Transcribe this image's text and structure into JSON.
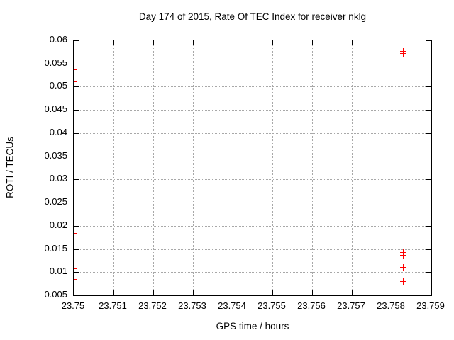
{
  "colors": {
    "background": "#ffffff",
    "border": "#000000",
    "grid": "#a8a8a8",
    "text": "#000000",
    "marker": "#ff0000"
  },
  "chart_data": {
    "type": "scatter",
    "title": "Day 174 of 2015, Rate Of TEC Index for receiver nklg",
    "xlabel": "GPS time / hours",
    "ylabel": "ROTI / TECUs",
    "xlim": [
      23.75,
      23.759
    ],
    "ylim": [
      0.005,
      0.06
    ],
    "grid": true,
    "legend": "none",
    "marker": "plus",
    "marker_color": "#ff0000",
    "x_ticks": [
      {
        "v": 23.75,
        "label": "23.75"
      },
      {
        "v": 23.751,
        "label": "23.751"
      },
      {
        "v": 23.752,
        "label": "23.752"
      },
      {
        "v": 23.753,
        "label": "23.753"
      },
      {
        "v": 23.754,
        "label": "23.754"
      },
      {
        "v": 23.755,
        "label": "23.755"
      },
      {
        "v": 23.756,
        "label": "23.756"
      },
      {
        "v": 23.757,
        "label": "23.757"
      },
      {
        "v": 23.758,
        "label": "23.758"
      },
      {
        "v": 23.759,
        "label": "23.759"
      }
    ],
    "y_ticks": [
      {
        "v": 0.06,
        "label": "0.06"
      },
      {
        "v": 0.055,
        "label": "0.055"
      },
      {
        "v": 0.05,
        "label": "0.05"
      },
      {
        "v": 0.045,
        "label": "0.045"
      },
      {
        "v": 0.04,
        "label": "0.04"
      },
      {
        "v": 0.035,
        "label": "0.035"
      },
      {
        "v": 0.03,
        "label": "0.03"
      },
      {
        "v": 0.025,
        "label": "0.025"
      },
      {
        "v": 0.02,
        "label": "0.02"
      },
      {
        "v": 0.015,
        "label": "0.015"
      },
      {
        "v": 0.01,
        "label": "0.01"
      },
      {
        "v": 0.005,
        "label": "0.005"
      }
    ],
    "series": [
      {
        "name": "ROTI",
        "points": [
          [
            23.75,
            0.0536
          ],
          [
            23.75,
            0.051
          ],
          [
            23.75,
            0.0183
          ],
          [
            23.75,
            0.0145
          ],
          [
            23.75,
            0.0114
          ],
          [
            23.75,
            0.0107
          ],
          [
            23.75,
            0.0085
          ],
          [
            23.7583,
            0.0577
          ],
          [
            23.7583,
            0.0571
          ],
          [
            23.7583,
            0.0142
          ],
          [
            23.7583,
            0.0136
          ],
          [
            23.7583,
            0.0111
          ],
          [
            23.7583,
            0.011
          ],
          [
            23.7583,
            0.008
          ]
        ]
      }
    ]
  }
}
